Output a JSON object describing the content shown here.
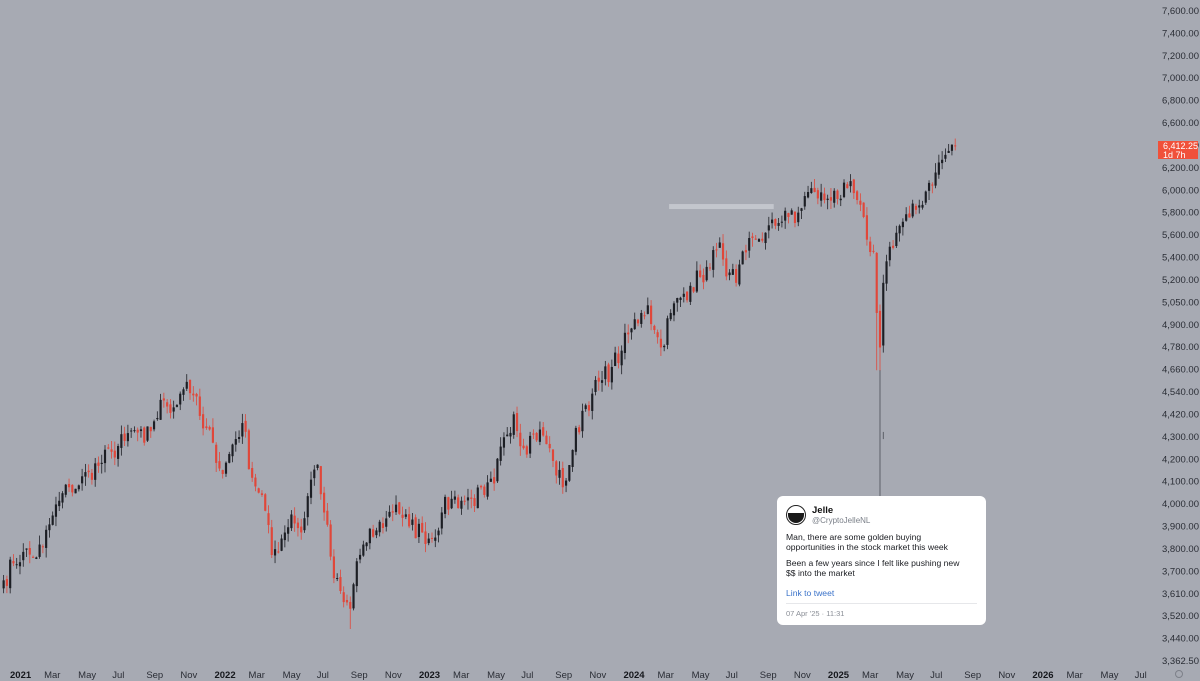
{
  "chart_data": {
    "type": "candlestick",
    "title": "",
    "xlabel": "",
    "ylabel": "",
    "y_axis": {
      "side": "right",
      "scale": "log",
      "ticks": [
        "7,600.00",
        "7,400.00",
        "7,200.00",
        "7,000.00",
        "6,800.00",
        "6,600.00",
        "6,400.00",
        "6,200.00",
        "6,000.00",
        "5,800.00",
        "5,600.00",
        "5,400.00",
        "5,200.00",
        "5,050.00",
        "4,900.00",
        "4,780.00",
        "4,660.00",
        "4,540.00",
        "4,420.00",
        "4,300.00",
        "4,200.00",
        "4,100.00",
        "4,000.00",
        "3,900.00",
        "3,800.00",
        "3,700.00",
        "3,610.00",
        "3,520.00",
        "3,440.00",
        "3,362.50"
      ],
      "ylim": [
        3362.5,
        7700
      ]
    },
    "x_axis": {
      "ticks": [
        {
          "label": "2021",
          "year": true
        },
        {
          "label": "Mar"
        },
        {
          "label": "May"
        },
        {
          "label": "Jul"
        },
        {
          "label": "Sep"
        },
        {
          "label": "Nov"
        },
        {
          "label": "2022",
          "year": true
        },
        {
          "label": "Mar"
        },
        {
          "label": "May"
        },
        {
          "label": "Jul"
        },
        {
          "label": "Sep"
        },
        {
          "label": "Nov"
        },
        {
          "label": "2023",
          "year": true
        },
        {
          "label": "Mar"
        },
        {
          "label": "May"
        },
        {
          "label": "Jul"
        },
        {
          "label": "Sep"
        },
        {
          "label": "Nov"
        },
        {
          "label": "2024",
          "year": true
        },
        {
          "label": "Mar"
        },
        {
          "label": "May"
        },
        {
          "label": "Jul"
        },
        {
          "label": "Sep"
        },
        {
          "label": "Nov"
        },
        {
          "label": "2025",
          "year": true
        },
        {
          "label": "Mar"
        },
        {
          "label": "May"
        },
        {
          "label": "Jul"
        },
        {
          "label": "Sep"
        },
        {
          "label": "Nov"
        },
        {
          "label": "2026",
          "year": true
        },
        {
          "label": "Mar"
        },
        {
          "label": "May"
        },
        {
          "label": "Jul"
        }
      ]
    },
    "colors": {
      "up": "#1c1e24",
      "down": "#e0473a",
      "background": "#a7aab3",
      "zone": "#c6c9cf"
    },
    "last_price": {
      "price": "6,412.25",
      "countdown": "1d 7h",
      "color": "#f0513a"
    },
    "zone": {
      "from_week": 204,
      "to_week": 236,
      "top": 5960,
      "bottom": 5930
    },
    "anchors": [
      [
        0,
        3720
      ],
      [
        3,
        3800
      ],
      [
        6,
        3855
      ],
      [
        9,
        3830
      ],
      [
        12,
        3880
      ],
      [
        14,
        3990
      ],
      [
        17,
        4110
      ],
      [
        20,
        4180
      ],
      [
        23,
        4190
      ],
      [
        26,
        4260
      ],
      [
        30,
        4310
      ],
      [
        33,
        4370
      ],
      [
        37,
        4430
      ],
      [
        40,
        4490
      ],
      [
        43,
        4420
      ],
      [
        46,
        4540
      ],
      [
        49,
        4660
      ],
      [
        52,
        4620
      ],
      [
        54,
        4700
      ],
      [
        56,
        4770
      ],
      [
        58,
        4690
      ],
      [
        61,
        4500
      ],
      [
        64,
        4420
      ],
      [
        67,
        4250
      ],
      [
        70,
        4410
      ],
      [
        73,
        4530
      ],
      [
        76,
        4230
      ],
      [
        79,
        4140
      ],
      [
        82,
        3840
      ],
      [
        85,
        3920
      ],
      [
        88,
        4040
      ],
      [
        91,
        3950
      ],
      [
        94,
        4220
      ],
      [
        96,
        4300
      ],
      [
        98,
        4050
      ],
      [
        101,
        3730
      ],
      [
        104,
        3620
      ],
      [
        106,
        3590
      ],
      [
        108,
        3810
      ],
      [
        111,
        3900
      ],
      [
        114,
        3960
      ],
      [
        117,
        4020
      ],
      [
        120,
        4090
      ],
      [
        124,
        3980
      ],
      [
        128,
        3950
      ],
      [
        131,
        3920
      ],
      [
        134,
        4050
      ],
      [
        137,
        4120
      ],
      [
        140,
        4110
      ],
      [
        143,
        4120
      ],
      [
        147,
        4140
      ],
      [
        150,
        4200
      ],
      [
        153,
        4450
      ],
      [
        156,
        4580
      ],
      [
        159,
        4390
      ],
      [
        162,
        4470
      ],
      [
        165,
        4460
      ],
      [
        168,
        4320
      ],
      [
        171,
        4180
      ],
      [
        174,
        4380
      ],
      [
        177,
        4600
      ],
      [
        180,
        4700
      ],
      [
        183,
        4780
      ],
      [
        186,
        4860
      ],
      [
        189,
        4960
      ],
      [
        192,
        5100
      ],
      [
        195,
        5200
      ],
      [
        197,
        5250
      ],
      [
        199,
        5090
      ],
      [
        201,
        4980
      ],
      [
        204,
        5200
      ],
      [
        207,
        5300
      ],
      [
        210,
        5380
      ],
      [
        213,
        5440
      ],
      [
        216,
        5500
      ],
      [
        218,
        5630
      ],
      [
        219,
        5680
      ],
      [
        220,
        5560
      ],
      [
        222,
        5470
      ],
      [
        224,
        5400
      ],
      [
        227,
        5610
      ],
      [
        230,
        5700
      ],
      [
        233,
        5750
      ],
      [
        236,
        5800
      ],
      [
        239,
        5910
      ],
      [
        242,
        5820
      ],
      [
        245,
        6020
      ],
      [
        248,
        6050
      ],
      [
        251,
        5990
      ],
      [
        254,
        6060
      ],
      [
        256,
        6000
      ],
      [
        258,
        6080
      ],
      [
        261,
        5990
      ],
      [
        264,
        5700
      ],
      [
        266,
        5620
      ],
      [
        267,
        5200
      ],
      [
        268,
        4980
      ],
      [
        269,
        5400
      ],
      [
        271,
        5650
      ],
      [
        274,
        5800
      ],
      [
        277,
        5860
      ],
      [
        280,
        5950
      ],
      [
        283,
        6120
      ],
      [
        285,
        6200
      ],
      [
        287,
        6300
      ],
      [
        289,
        6370
      ],
      [
        290,
        6420
      ],
      [
        291,
        6412
      ]
    ]
  },
  "tweet": {
    "name": "Jelle",
    "handle": "@CryptoJelleNL",
    "text1": "Man, there are some golden buying\nopportunities in the stock market this week",
    "text2": "Been a few years since I felt like pushing new\n$$ into the market",
    "link_label": "Link to tweet",
    "date": "07 Apr '25 · 11:31"
  }
}
